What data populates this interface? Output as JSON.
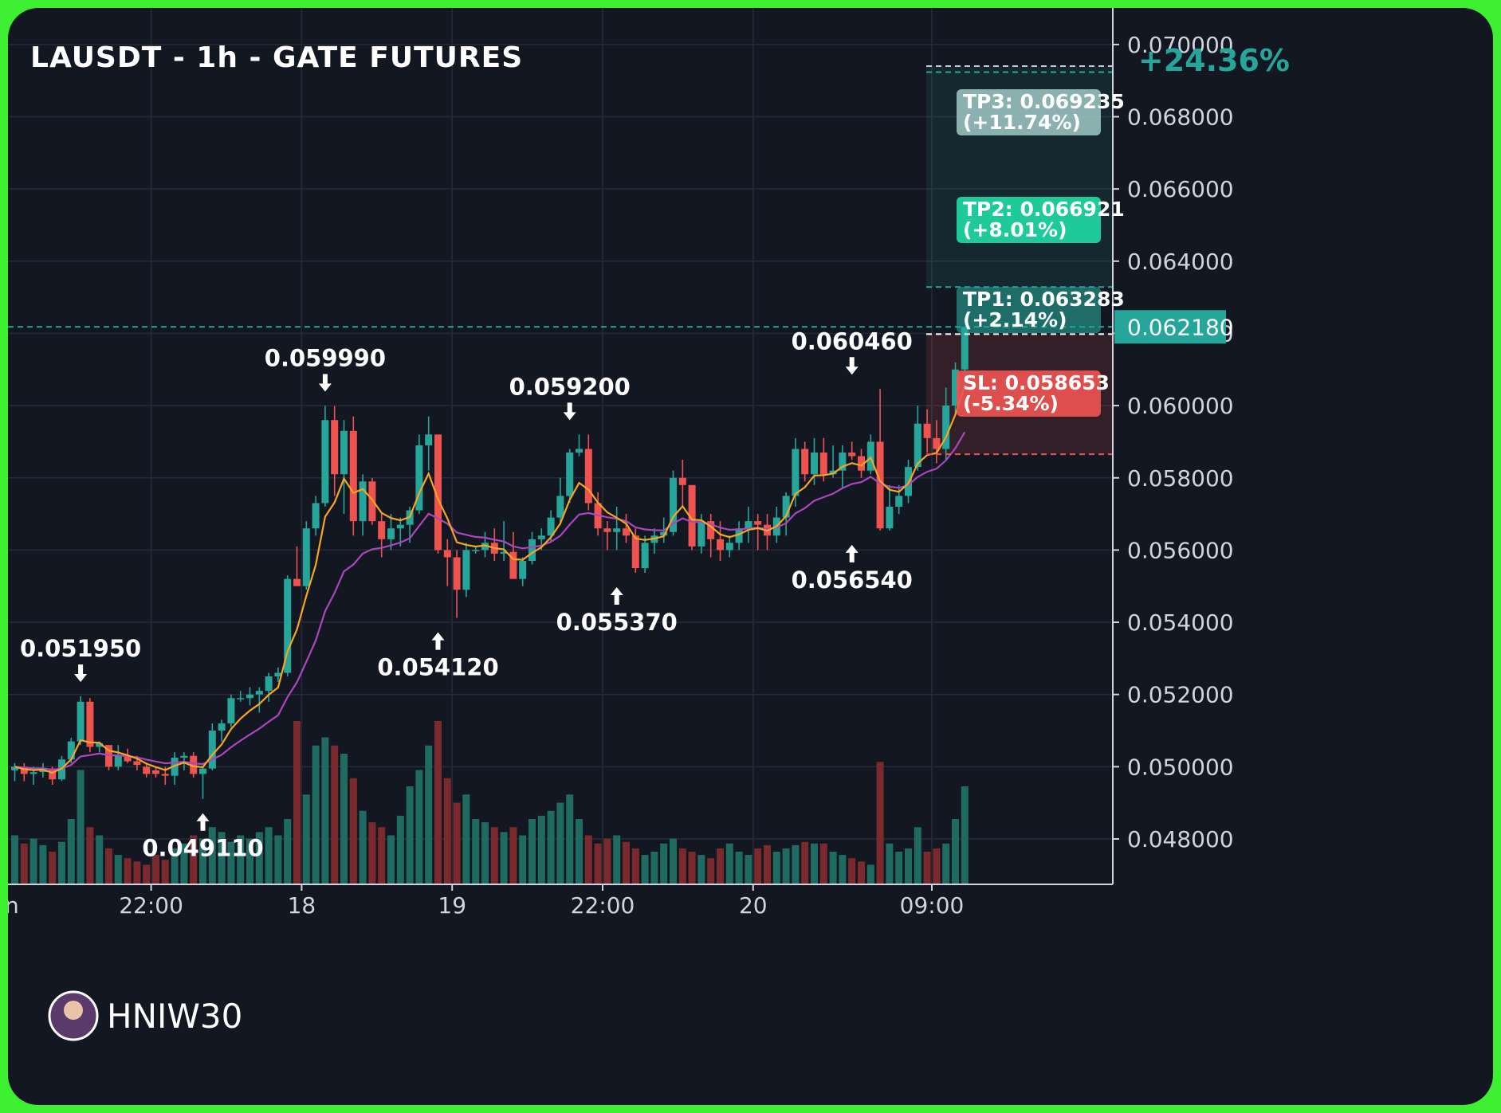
{
  "chart_data": {
    "type": "candlestick",
    "title": "LAUSDT - 1h - GATE FUTURES",
    "change_label": "+24.36%",
    "ylim": [
      0.0468,
      0.0709
    ],
    "y_ticks": [
      "0.070000",
      "0.068000",
      "0.066000",
      "0.064000",
      "0.062000",
      "0.060000",
      "0.058000",
      "0.056000",
      "0.054000",
      "0.052000",
      "0.050000",
      "0.048000"
    ],
    "x_ticks": [
      {
        "label": "22:00",
        "idx": 14.5
      },
      {
        "label": "18",
        "idx": 30.5
      },
      {
        "label": "19",
        "idx": 46.5
      },
      {
        "label": "22:00",
        "idx": 62.5
      },
      {
        "label": "20",
        "idx": 78.5
      },
      {
        "label": "09:00",
        "idx": 97.5
      }
    ],
    "x_cut_label": "n",
    "current_price": 0.06218,
    "current_price_label": "0.062180",
    "levels": {
      "tp3": {
        "value": 0.069235,
        "text": "TP3: 0.069235",
        "pct": "(+11.74%)"
      },
      "tp2": {
        "value": 0.066921,
        "text": "TP2: 0.066921",
        "pct": "(+8.01%)"
      },
      "tp1": {
        "value": 0.063283,
        "text": "TP1: 0.063283",
        "pct": "(+2.14%)"
      },
      "entry": {
        "value": 0.06198
      },
      "sl": {
        "value": 0.058653,
        "text": "SL: 0.058653",
        "pct": "(-5.34%)"
      },
      "top": {
        "value": 0.0694
      }
    },
    "annotations": [
      {
        "label": "0.051950",
        "idx": 7,
        "price": 0.05195,
        "dir": "down"
      },
      {
        "label": "0.049110",
        "idx": 20,
        "price": 0.04911,
        "dir": "up"
      },
      {
        "label": "0.059990",
        "idx": 33,
        "price": 0.05999,
        "dir": "down"
      },
      {
        "label": "0.054120",
        "idx": 45,
        "price": 0.05412,
        "dir": "up"
      },
      {
        "label": "0.059200",
        "idx": 59,
        "price": 0.0592,
        "dir": "down"
      },
      {
        "label": "0.055370",
        "idx": 64,
        "price": 0.05537,
        "dir": "up"
      },
      {
        "label": "0.060460",
        "idx": 89,
        "price": 0.06046,
        "dir": "down"
      },
      {
        "label": "0.056540",
        "idx": 89,
        "price": 0.05654,
        "dir": "up"
      }
    ],
    "candles": [
      [
        0.0499,
        0.0501,
        0.0496,
        0.05
      ],
      [
        0.05,
        0.0501,
        0.0496,
        0.0498
      ],
      [
        0.0498,
        0.05,
        0.0495,
        0.04985
      ],
      [
        0.04985,
        0.0501,
        0.0497,
        0.04995
      ],
      [
        0.04995,
        0.05,
        0.0495,
        0.04965
      ],
      [
        0.04965,
        0.0503,
        0.0496,
        0.0502
      ],
      [
        0.0502,
        0.0508,
        0.0501,
        0.0507
      ],
      [
        0.0507,
        0.05195,
        0.0506,
        0.0518
      ],
      [
        0.0518,
        0.0519,
        0.0504,
        0.05055
      ],
      [
        0.05055,
        0.0507,
        0.0504,
        0.05065
      ],
      [
        0.0506,
        0.0506,
        0.0499,
        0.05
      ],
      [
        0.05,
        0.0506,
        0.0499,
        0.0503
      ],
      [
        0.0503,
        0.0505,
        0.0501,
        0.05015
      ],
      [
        0.05015,
        0.0503,
        0.0499,
        0.05005
      ],
      [
        0.05,
        0.0501,
        0.0497,
        0.0498
      ],
      [
        0.0499,
        0.05,
        0.0497,
        0.0498
      ],
      [
        0.0498,
        0.05,
        0.0495,
        0.04975
      ],
      [
        0.04975,
        0.0504,
        0.0495,
        0.05025
      ],
      [
        0.05025,
        0.0504,
        0.0499,
        0.0503
      ],
      [
        0.0503,
        0.0504,
        0.0497,
        0.0498
      ],
      [
        0.0498,
        0.05,
        0.04911,
        0.04995
      ],
      [
        0.04995,
        0.0512,
        0.0499,
        0.051
      ],
      [
        0.051,
        0.0513,
        0.0507,
        0.0512
      ],
      [
        0.0512,
        0.052,
        0.0511,
        0.0519
      ],
      [
        0.0519,
        0.0521,
        0.0518,
        0.0519
      ],
      [
        0.0519,
        0.0522,
        0.0517,
        0.052
      ],
      [
        0.052,
        0.0522,
        0.0515,
        0.0521
      ],
      [
        0.0521,
        0.0526,
        0.0518,
        0.0525
      ],
      [
        0.0525,
        0.05275,
        0.05235,
        0.0526
      ],
      [
        0.0526,
        0.0553,
        0.0525,
        0.0552
      ],
      [
        0.0552,
        0.0561,
        0.0551,
        0.055
      ],
      [
        0.055,
        0.0568,
        0.0549,
        0.0566
      ],
      [
        0.0566,
        0.0575,
        0.0564,
        0.0573
      ],
      [
        0.0573,
        0.05999,
        0.0572,
        0.0596
      ],
      [
        0.0596,
        0.05999,
        0.0575,
        0.0581
      ],
      [
        0.0581,
        0.0596,
        0.057,
        0.0593
      ],
      [
        0.0593,
        0.0597,
        0.0564,
        0.0568
      ],
      [
        0.0568,
        0.0581,
        0.0564,
        0.0579
      ],
      [
        0.0579,
        0.058,
        0.0567,
        0.0568
      ],
      [
        0.0568,
        0.057,
        0.0558,
        0.0563
      ],
      [
        0.0563,
        0.057,
        0.056,
        0.0566
      ],
      [
        0.0566,
        0.0569,
        0.0561,
        0.0567
      ],
      [
        0.0567,
        0.0572,
        0.0562,
        0.0571
      ],
      [
        0.0571,
        0.0592,
        0.057,
        0.0589
      ],
      [
        0.0589,
        0.0597,
        0.0582,
        0.0592
      ],
      [
        0.0592,
        0.0592,
        0.0559,
        0.056
      ],
      [
        0.056,
        0.0563,
        0.055,
        0.0558
      ],
      [
        0.0558,
        0.056,
        0.05412,
        0.0549
      ],
      [
        0.0549,
        0.0562,
        0.0547,
        0.056
      ],
      [
        0.056,
        0.0561,
        0.0559,
        0.056
      ],
      [
        0.056,
        0.0565,
        0.0558,
        0.0562
      ],
      [
        0.0562,
        0.0566,
        0.0557,
        0.0559
      ],
      [
        0.0559,
        0.0568,
        0.0557,
        0.05595
      ],
      [
        0.05595,
        0.0565,
        0.0554,
        0.0552
      ],
      [
        0.0552,
        0.0558,
        0.055,
        0.0557
      ],
      [
        0.0557,
        0.0565,
        0.0556,
        0.0563
      ],
      [
        0.0563,
        0.0566,
        0.056,
        0.0564
      ],
      [
        0.0564,
        0.0571,
        0.0562,
        0.0569
      ],
      [
        0.0569,
        0.058,
        0.0567,
        0.0575
      ],
      [
        0.0575,
        0.0588,
        0.0573,
        0.0587
      ],
      [
        0.0587,
        0.0592,
        0.0586,
        0.0588
      ],
      [
        0.0588,
        0.0592,
        0.0571,
        0.0573
      ],
      [
        0.0573,
        0.0576,
        0.0564,
        0.0566
      ],
      [
        0.0566,
        0.0568,
        0.056,
        0.0565
      ],
      [
        0.0565,
        0.0572,
        0.056,
        0.0566
      ],
      [
        0.0566,
        0.057,
        0.0562,
        0.0564
      ],
      [
        0.0564,
        0.0566,
        0.05537,
        0.0555
      ],
      [
        0.0555,
        0.0564,
        0.05537,
        0.0562
      ],
      [
        0.0562,
        0.0566,
        0.0559,
        0.0564
      ],
      [
        0.0564,
        0.0569,
        0.0562,
        0.0565
      ],
      [
        0.0565,
        0.0582,
        0.0564,
        0.058
      ],
      [
        0.058,
        0.0585,
        0.0572,
        0.0578
      ],
      [
        0.0578,
        0.0578,
        0.056,
        0.0561
      ],
      [
        0.0561,
        0.057,
        0.0559,
        0.0568
      ],
      [
        0.0568,
        0.057,
        0.0558,
        0.0563
      ],
      [
        0.0563,
        0.0568,
        0.0557,
        0.056
      ],
      [
        0.056,
        0.0564,
        0.0558,
        0.0562
      ],
      [
        0.0562,
        0.0568,
        0.056,
        0.0566
      ],
      [
        0.0566,
        0.0572,
        0.0562,
        0.0568
      ],
      [
        0.0568,
        0.057,
        0.056,
        0.0567
      ],
      [
        0.0567,
        0.057,
        0.056,
        0.0564
      ],
      [
        0.0564,
        0.0572,
        0.0562,
        0.0569
      ],
      [
        0.0569,
        0.0576,
        0.0564,
        0.0575
      ],
      [
        0.0575,
        0.0591,
        0.0572,
        0.0588
      ],
      [
        0.0588,
        0.059,
        0.0579,
        0.0581
      ],
      [
        0.0581,
        0.0591,
        0.0578,
        0.0587
      ],
      [
        0.0587,
        0.0591,
        0.0579,
        0.0581
      ],
      [
        0.0581,
        0.0589,
        0.058,
        0.0582
      ],
      [
        0.0582,
        0.0589,
        0.0577,
        0.0587
      ],
      [
        0.0587,
        0.059,
        0.0585,
        0.0586
      ],
      [
        0.0586,
        0.0588,
        0.058,
        0.0582
      ],
      [
        0.0582,
        0.0592,
        0.0581,
        0.059
      ],
      [
        0.059,
        0.06046,
        0.05654,
        0.0566
      ],
      [
        0.0566,
        0.0578,
        0.05654,
        0.0572
      ],
      [
        0.0572,
        0.0578,
        0.057,
        0.0575
      ],
      [
        0.0575,
        0.0585,
        0.0573,
        0.0583
      ],
      [
        0.0583,
        0.06,
        0.0582,
        0.0595
      ],
      [
        0.0595,
        0.0599,
        0.0587,
        0.0591
      ],
      [
        0.0591,
        0.0596,
        0.0584,
        0.0588
      ],
      [
        0.0588,
        0.0605,
        0.0585,
        0.06
      ],
      [
        0.06,
        0.0612,
        0.0598,
        0.061
      ],
      [
        0.061,
        0.06218,
        0.0605,
        0.06218
      ]
    ],
    "volume": [
      0.3,
      0.25,
      0.28,
      0.24,
      0.2,
      0.26,
      0.4,
      0.7,
      0.35,
      0.3,
      0.22,
      0.18,
      0.16,
      0.14,
      0.12,
      0.18,
      0.15,
      0.22,
      0.25,
      0.3,
      0.28,
      0.35,
      0.32,
      0.26,
      0.3,
      0.28,
      0.32,
      0.35,
      0.3,
      0.4,
      1.0,
      0.55,
      0.85,
      0.9,
      0.85,
      0.8,
      0.65,
      0.45,
      0.38,
      0.35,
      0.3,
      0.42,
      0.6,
      0.7,
      0.85,
      1.0,
      0.65,
      0.5,
      0.55,
      0.4,
      0.38,
      0.35,
      0.32,
      0.35,
      0.3,
      0.4,
      0.42,
      0.45,
      0.5,
      0.55,
      0.4,
      0.3,
      0.25,
      0.28,
      0.3,
      0.26,
      0.22,
      0.18,
      0.2,
      0.25,
      0.28,
      0.22,
      0.2,
      0.18,
      0.16,
      0.22,
      0.25,
      0.2,
      0.18,
      0.22,
      0.24,
      0.2,
      0.22,
      0.24,
      0.26,
      0.25,
      0.25,
      0.2,
      0.18,
      0.16,
      0.14,
      0.12,
      0.75,
      0.25,
      0.2,
      0.22,
      0.35,
      0.2,
      0.22,
      0.25,
      0.4,
      0.6
    ]
  },
  "watermark": {
    "text": "HNIW30"
  }
}
